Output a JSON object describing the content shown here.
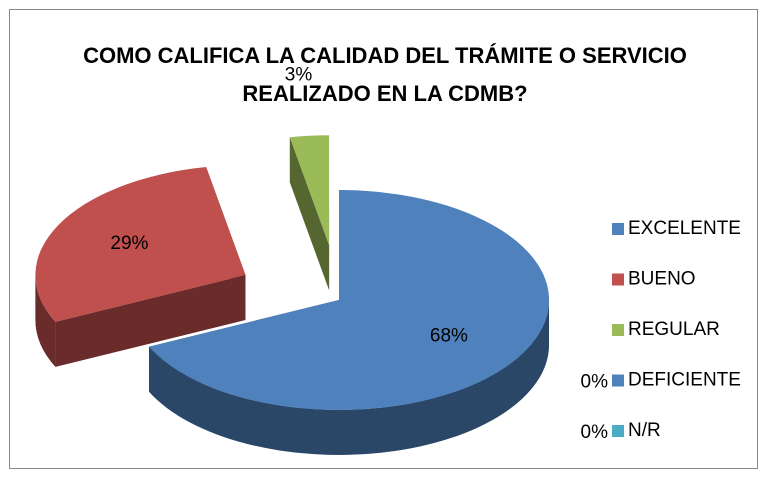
{
  "chart_data": {
    "type": "pie3d",
    "title": "COMO CALIFICA LA CALIDAD DEL TRÁMITE O SERVICIO REALIZADO EN LA CDMB?",
    "title_lines": [
      "COMO CALIFICA LA CALIDAD DEL TRÁMITE O SERVICIO",
      "REALIZADO EN LA CDMB?"
    ],
    "categories": [
      "EXCELENTE",
      "BUENO",
      "REGULAR",
      "DEFICIENTE",
      "N/R"
    ],
    "values": [
      68,
      29,
      3,
      0,
      0
    ],
    "value_labels": [
      "68%",
      "29%",
      "3%",
      "0%",
      "0%"
    ],
    "colors": [
      "#4f81bd",
      "#c0504d",
      "#9bbb59",
      "#4f81bd",
      "#4bacc6"
    ],
    "legend": "right"
  }
}
